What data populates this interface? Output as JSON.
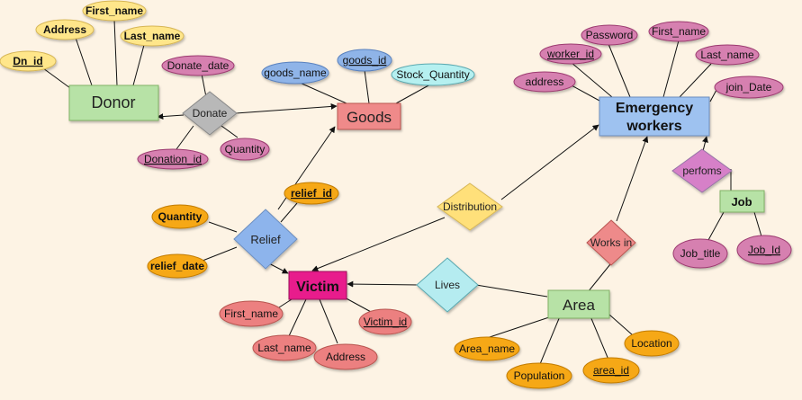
{
  "colors": {
    "background": "#fdf3e4",
    "donor_attr": "#ffe68a",
    "donor_entity": "#b7e2a6",
    "pink_attr": "#d680b0",
    "blue_attr": "#8fb4e8",
    "cyan_attr": "#b5f0f0",
    "goods_entity": "#ef8a8a",
    "emergency_entity": "#9ec2f0",
    "orange_attr": "#f6a814",
    "victim_entity": "#e81e8c",
    "red_attr": "#ec8080",
    "relief_rel": "#8db4ec",
    "distribution_rel": "#ffe07a",
    "worksin_rel": "#ee8a8a",
    "perfoms_rel": "#d680c8",
    "job_entity": "#b7e2a6",
    "lives_rel": "#b5ecf0",
    "area_entity": "#b7e2a6",
    "donate_rel": "#b8b8b8"
  },
  "entities": {
    "donor": "Donor",
    "goods": "Goods",
    "emergency_line1": "Emergency",
    "emergency_line2": "workers",
    "victim": "Victim",
    "area": "Area",
    "job": "Job"
  },
  "relationships": {
    "donate": "Donate",
    "relief": "Relief",
    "distribution": "Distribution",
    "works_in": "Works in",
    "perfoms": "perfoms",
    "lives": "Lives"
  },
  "attributes": {
    "donor_first_name": "First_name",
    "donor_address": "Address",
    "donor_last_name": "Last_name",
    "donor_dn_id": "Dn_id",
    "donate_date": "Donate_date",
    "donation_id": "Donation_id",
    "donate_quantity": "Quantity",
    "goods_name": "goods_name",
    "goods_id": "goods_id",
    "stock_quantity": "Stock_Quantity",
    "worker_password": "Password",
    "worker_first_name": "First_name",
    "worker_id": "worker_id",
    "worker_last_name": "Last_name",
    "worker_address": "address",
    "join_date": "join_Date",
    "job_title": "Job_title",
    "job_id": "Job_Id",
    "relief_id": "relief_id",
    "relief_quantity": "Quantity",
    "relief_date": "relief_date",
    "victim_first_name": "First_name",
    "victim_last_name": "Last_name",
    "victim_address": "Address",
    "victim_id": "Victim_id",
    "area_name": "Area_name",
    "population": "Population",
    "area_id": "area_id",
    "location": "Location"
  }
}
